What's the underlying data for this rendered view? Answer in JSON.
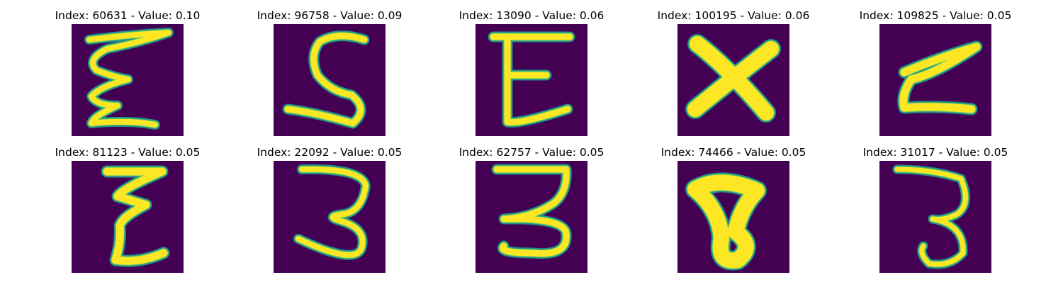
{
  "colors": {
    "background": "#440154",
    "stroke_core": "#fde725",
    "stroke_mid": "#5ec962",
    "stroke_edge": "#21918c"
  },
  "tiles": [
    {
      "title": "Index: 60631 - Value: 0.10",
      "glyph": "e-script-1"
    },
    {
      "title": "Index: 96758 - Value: 0.09",
      "glyph": "s"
    },
    {
      "title": "Index: 13090 - Value: 0.06",
      "glyph": "e-block"
    },
    {
      "title": "Index: 100195 - Value: 0.06",
      "glyph": "x"
    },
    {
      "title": "Index: 109825 - Value: 0.05",
      "glyph": "e-script-2"
    },
    {
      "title": "Index: 81123 - Value: 0.05",
      "glyph": "e-script-3"
    },
    {
      "title": "Index: 22092 - Value: 0.05",
      "glyph": "three-1"
    },
    {
      "title": "Index: 62757 - Value: 0.05",
      "glyph": "three-2"
    },
    {
      "title": "Index: 74466 - Value: 0.05",
      "glyph": "blob-t"
    },
    {
      "title": "Index: 31017 - Value: 0.05",
      "glyph": "three-3"
    }
  ]
}
